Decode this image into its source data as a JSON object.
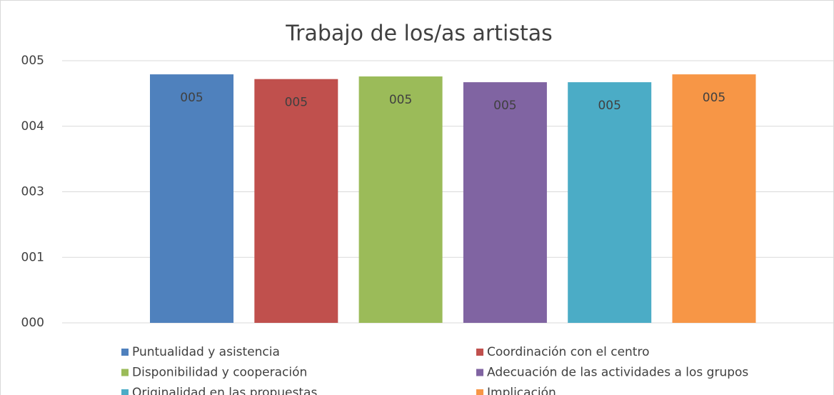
{
  "chart_data": {
    "type": "bar",
    "title": "Trabajo de los/as artistas",
    "categories": [
      null
    ],
    "series": [
      {
        "name": "Puntualidad y asistencia",
        "color": "#4f81bd",
        "values": [
          4.74
        ],
        "value_labels": [
          "005"
        ]
      },
      {
        "name": "Coordinación con el centro",
        "color": "#c0504d",
        "values": [
          4.65
        ],
        "value_labels": [
          "005"
        ]
      },
      {
        "name": "Disponibilidad y cooperación",
        "color": "#9bbb59",
        "values": [
          4.7
        ],
        "value_labels": [
          "005"
        ]
      },
      {
        "name": "Adecuación de las actividades a los grupos",
        "color": "#8064a2",
        "values": [
          4.59
        ],
        "value_labels": [
          "005"
        ]
      },
      {
        "name": "Originalidad en las propuestas",
        "color": "#4bacc6",
        "values": [
          4.59
        ],
        "value_labels": [
          "005"
        ]
      },
      {
        "name": "Implicación",
        "color": "#f79646",
        "values": [
          4.74
        ],
        "value_labels": [
          "005"
        ]
      }
    ],
    "ylim": [
      0,
      5
    ],
    "yticks": [
      {
        "value": 0,
        "label": "000"
      },
      {
        "value": 1.25,
        "label": "001"
      },
      {
        "value": 2.5,
        "label": "003"
      },
      {
        "value": 3.75,
        "label": "004"
      },
      {
        "value": 5,
        "label": "005"
      }
    ],
    "grid": true,
    "legend": "bottom"
  }
}
